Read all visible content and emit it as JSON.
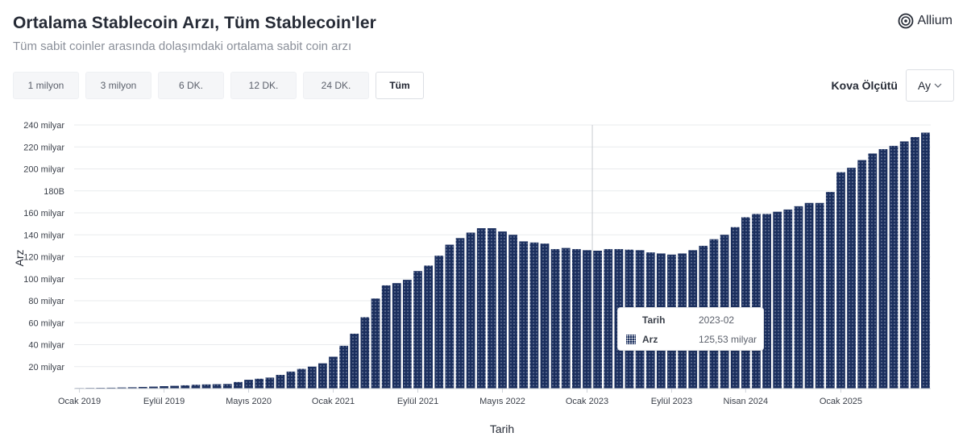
{
  "header": {
    "title": "Ortalama Stablecoin Arzı, Tüm Stablecoin'ler",
    "subtitle": "Tüm sabit coinler arasında dolaşımdaki ortalama sabit coin arzı",
    "brand": "Allium"
  },
  "toolbar": {
    "ranges": [
      {
        "label": "1 milyon",
        "selected": false
      },
      {
        "label": "3 milyon",
        "selected": false
      },
      {
        "label": "6 DK.",
        "selected": false
      },
      {
        "label": "12 DK.",
        "selected": false
      },
      {
        "label": "24 DK.",
        "selected": false
      },
      {
        "label": "Tüm",
        "selected": true
      }
    ],
    "bucket_label": "Kova Ölçütü",
    "bucket_value": "Ay"
  },
  "tooltip": {
    "date_key": "Tarih",
    "date_value": "2023-02",
    "series_key": "Arz",
    "series_value": "125,53 milyar"
  },
  "colors": {
    "bar": "#1b2f5e",
    "grid": "#e9ebee",
    "crosshair": "#c8ccd2"
  },
  "chart_data": {
    "type": "bar",
    "xlabel": "Tarih",
    "ylabel": "Arz",
    "ylim": [
      0,
      240
    ],
    "unit": "milyar",
    "grid": true,
    "y_ticks": [
      "20 milyar",
      "40 milyar",
      "60 milyar",
      "80 milyar",
      "100 milyar",
      "120 milyar",
      "140 milyar",
      "160 milyar",
      "180B",
      "200 milyar",
      "220 milyar",
      "240 milyar"
    ],
    "x_ticks": [
      {
        "label": "Ocak 2019",
        "month": "2019-01"
      },
      {
        "label": "Eylül 2019",
        "month": "2019-09"
      },
      {
        "label": "Mayıs 2020",
        "month": "2020-05"
      },
      {
        "label": "Ocak 2021",
        "month": "2021-01"
      },
      {
        "label": "Eylül 2021",
        "month": "2021-09"
      },
      {
        "label": "Mayıs 2022",
        "month": "2022-05"
      },
      {
        "label": "Ocak 2023",
        "month": "2023-01"
      },
      {
        "label": "Eylül 2023",
        "month": "2023-09"
      },
      {
        "label": "Nisan 2024",
        "month": "2024-04"
      },
      {
        "label": "Ocak 2025",
        "month": "2025-01"
      }
    ],
    "highlight": "2023-02",
    "categories": [
      "2019-01",
      "2019-02",
      "2019-03",
      "2019-04",
      "2019-05",
      "2019-06",
      "2019-07",
      "2019-08",
      "2019-09",
      "2019-10",
      "2019-11",
      "2019-12",
      "2020-01",
      "2020-02",
      "2020-03",
      "2020-04",
      "2020-05",
      "2020-06",
      "2020-07",
      "2020-08",
      "2020-09",
      "2020-10",
      "2020-11",
      "2020-12",
      "2021-01",
      "2021-02",
      "2021-03",
      "2021-04",
      "2021-05",
      "2021-06",
      "2021-07",
      "2021-08",
      "2021-09",
      "2021-10",
      "2021-11",
      "2021-12",
      "2022-01",
      "2022-02",
      "2022-03",
      "2022-04",
      "2022-05",
      "2022-06",
      "2022-07",
      "2022-08",
      "2022-09",
      "2022-10",
      "2022-11",
      "2022-12",
      "2023-01",
      "2023-02",
      "2023-03",
      "2023-04",
      "2023-05",
      "2023-06",
      "2023-07",
      "2023-08",
      "2023-09",
      "2023-10",
      "2023-11",
      "2023-12",
      "2024-01",
      "2024-02",
      "2024-03",
      "2024-04",
      "2024-05",
      "2024-06",
      "2024-07",
      "2024-08",
      "2024-09",
      "2024-10",
      "2024-11",
      "2024-12",
      "2025-01",
      "2025-02",
      "2025-03",
      "2025-04",
      "2025-05",
      "2025-06",
      "2025-07",
      "2025-08",
      "2025-09"
    ],
    "series": [
      {
        "values": [
          0.5,
          0.6,
          0.7,
          0.8,
          1.0,
          1.2,
          1.5,
          1.8,
          2.2,
          2.5,
          3.0,
          3.5,
          3.8,
          4.0,
          4.2,
          6.0,
          8.0,
          9.0,
          10.0,
          12.5,
          15.5,
          18.0,
          20.0,
          23.0,
          29.0,
          39.0,
          50.0,
          65.0,
          82.0,
          94.0,
          96.0,
          99.0,
          107.0,
          112.0,
          121.0,
          131.0,
          137.0,
          142.0,
          146.0,
          146.0,
          143.0,
          140.0,
          134.0,
          133.0,
          132.0,
          127.0,
          128.0,
          127.0,
          126.0,
          125.53,
          127.0,
          127.0,
          126.5,
          126.0,
          124.0,
          123.0,
          122.0,
          123.0,
          126.0,
          130.0,
          136.0,
          140.0,
          147.0,
          156.0,
          159.0,
          159.0,
          161.0,
          163.0,
          166.0,
          169.0,
          169.0,
          179.0,
          197.0,
          201.0,
          208.0,
          214.0,
          218.0,
          221.0,
          225.0,
          229.0,
          233.0
        ]
      }
    ]
  }
}
